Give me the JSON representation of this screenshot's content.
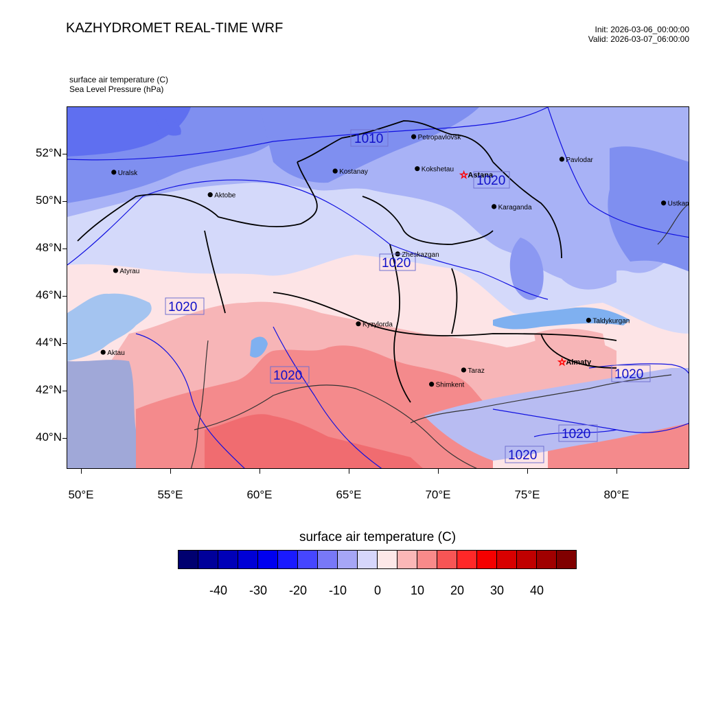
{
  "header": {
    "title": "KAZHYDROMET REAL-TIME WRF",
    "init": "Init: 2026-03-06_00:00:00",
    "valid": "Valid: 2026-03-07_06:00:00",
    "field1": "surface air temperature   (C)",
    "field2": "Sea Level Pressure   (hPa)"
  },
  "axes": {
    "lat_labels": [
      "52°N",
      "50°N",
      "48°N",
      "46°N",
      "44°N",
      "42°N",
      "40°N"
    ],
    "lon_labels": [
      "50°E",
      "55°E",
      "60°E",
      "65°E",
      "70°E",
      "75°E",
      "80°E"
    ]
  },
  "cities": [
    {
      "name": "Petropavlovsk",
      "lon": 68.6,
      "lat": 52.75,
      "capital": false
    },
    {
      "name": "Kostanay",
      "lon": 64.2,
      "lat": 51.3,
      "capital": false
    },
    {
      "name": "Kokshetau",
      "lon": 68.8,
      "lat": 51.4,
      "capital": false
    },
    {
      "name": "Pavlodar",
      "lon": 76.9,
      "lat": 51.8,
      "capital": false
    },
    {
      "name": "Uralsk",
      "lon": 51.8,
      "lat": 51.25,
      "capital": false
    },
    {
      "name": "Astana",
      "lon": 71.4,
      "lat": 51.15,
      "capital": true
    },
    {
      "name": "Aktobe",
      "lon": 57.2,
      "lat": 50.3,
      "capital": false
    },
    {
      "name": "Ustkamen",
      "lon": 82.6,
      "lat": 49.95,
      "capital": false
    },
    {
      "name": "Karaganda",
      "lon": 73.1,
      "lat": 49.8,
      "capital": false
    },
    {
      "name": "Atyrau",
      "lon": 51.9,
      "lat": 47.1,
      "capital": false
    },
    {
      "name": "Zheskazgan",
      "lon": 67.7,
      "lat": 47.8,
      "capital": false
    },
    {
      "name": "Taldykurgan",
      "lon": 78.4,
      "lat": 45.0,
      "capital": false
    },
    {
      "name": "Kyzylorda",
      "lon": 65.5,
      "lat": 44.85,
      "capital": false
    },
    {
      "name": "Aktau",
      "lon": 51.2,
      "lat": 43.65,
      "capital": false
    },
    {
      "name": "Almaty",
      "lon": 76.9,
      "lat": 43.25,
      "capital": true
    },
    {
      "name": "Taraz",
      "lon": 71.4,
      "lat": 42.9,
      "capital": false
    },
    {
      "name": "Shimkent",
      "lon": 69.6,
      "lat": 42.3,
      "capital": false
    }
  ],
  "isobar_labels": [
    "1010",
    "1020",
    "1020",
    "1020",
    "1020",
    "1020",
    "1020",
    "1020"
  ],
  "legend": {
    "title": "surface air temperature  (C)",
    "labels": [
      "-40",
      "-30",
      "-20",
      "-10",
      "0",
      "10",
      "20",
      "30",
      "40"
    ],
    "colors": [
      "#000070",
      "#00009a",
      "#0000b8",
      "#0000d6",
      "#0000f0",
      "#1a1aff",
      "#4646ff",
      "#7878f8",
      "#a6a6f6",
      "#d6d6fb",
      "#fde8e8",
      "#fbb7b7",
      "#f98a8a",
      "#f75555",
      "#ff2828",
      "#f50000",
      "#d80000",
      "#c00000",
      "#a00000",
      "#800000"
    ]
  },
  "temperature_colors": {
    "cold_dark": "#5f6ff0",
    "cold": "#7f8ff0",
    "cool": "#a8b2f6",
    "light": "#d4d9fa",
    "near_zero": "#fde4e6",
    "warm": "#f7b5b7",
    "hot": "#f48a8c",
    "very_hot": "#f06c70",
    "caspian": "#a4c4f0",
    "caspian_south": "#a0a8d8"
  }
}
